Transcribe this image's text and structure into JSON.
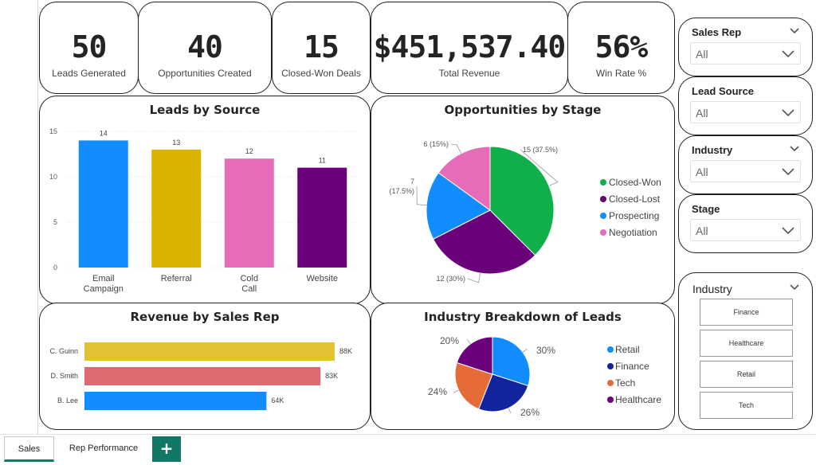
{
  "kpis": [
    {
      "value": "50",
      "label": "Leads Generated"
    },
    {
      "value": "40",
      "label": "Opportunities Created"
    },
    {
      "value": "15",
      "label": "Closed-Won Deals"
    },
    {
      "value": "$451,537.40",
      "label": "Total Revenue"
    },
    {
      "value": "56%",
      "label": "Win Rate %"
    }
  ],
  "visuals": {
    "leads_by_source": {
      "title": "Leads by Source"
    },
    "opps_by_stage": {
      "title": "Opportunities by Stage"
    },
    "revenue_by_rep": {
      "title": "Revenue by Sales Rep"
    },
    "industry_breakdown": {
      "title": "Industry Breakdown of Leads"
    }
  },
  "slicers": [
    {
      "title": "Sales Rep",
      "value": "All"
    },
    {
      "title": "Lead Source",
      "value": "All"
    },
    {
      "title": "Industry",
      "value": "All"
    },
    {
      "title": "Stage",
      "value": "All"
    }
  ],
  "industry_tiles": {
    "title": "Industry",
    "items": [
      "Finance",
      "Healthcare",
      "Retail",
      "Tech"
    ]
  },
  "tabs": [
    {
      "label": "Sales",
      "active": true
    },
    {
      "label": "Rep Performance",
      "active": false
    }
  ],
  "add_tab_label": "+",
  "chart_data": [
    {
      "type": "bar",
      "title": "Leads by Source",
      "categories": [
        "Email Campaign",
        "Referral",
        "Cold Call",
        "Website"
      ],
      "values": [
        14,
        13,
        12,
        11
      ],
      "data_labels": [
        "14",
        "13",
        "12",
        "11"
      ],
      "colors": [
        "#118DFF",
        "#D9B300",
        "#E66CBA",
        "#6B007B"
      ],
      "ylim": [
        0,
        15
      ],
      "yticks": [
        0,
        5,
        10,
        15
      ],
      "ytick_labels": [
        "0",
        "5",
        "10",
        "15"
      ],
      "grid": true
    },
    {
      "type": "pie",
      "title": "Opportunities by Stage",
      "categories": [
        "Closed-Won",
        "Closed-Lost",
        "Prospecting",
        "Negotiation"
      ],
      "values": [
        15,
        12,
        7,
        6
      ],
      "data_labels": [
        "15 (37.5%)",
        "12 (30%)",
        "7 (17.5%)",
        "6 (15%)"
      ],
      "colors": [
        "#0FAF4A",
        "#6B007B",
        "#118DFF",
        "#E66CBA"
      ],
      "legend": "right"
    },
    {
      "type": "bar",
      "orientation": "horizontal",
      "title": "Revenue by Sales Rep",
      "categories": [
        "C. Guinn",
        "D. Smith",
        "B. Lee"
      ],
      "values": [
        88,
        83,
        64
      ],
      "unit": "K",
      "data_labels": [
        "88K",
        "83K",
        "64K"
      ],
      "colors": [
        "#E0C232",
        "#E06A72",
        "#118DFF"
      ]
    },
    {
      "type": "pie",
      "title": "Industry Breakdown of Leads",
      "categories": [
        "Retail",
        "Finance",
        "Tech",
        "Healthcare"
      ],
      "values": [
        30,
        26,
        24,
        20
      ],
      "data_labels": [
        "30%",
        "26%",
        "24%",
        "20%"
      ],
      "colors": [
        "#118DFF",
        "#12239E",
        "#E66C37",
        "#6B007B"
      ],
      "legend": "right"
    }
  ]
}
